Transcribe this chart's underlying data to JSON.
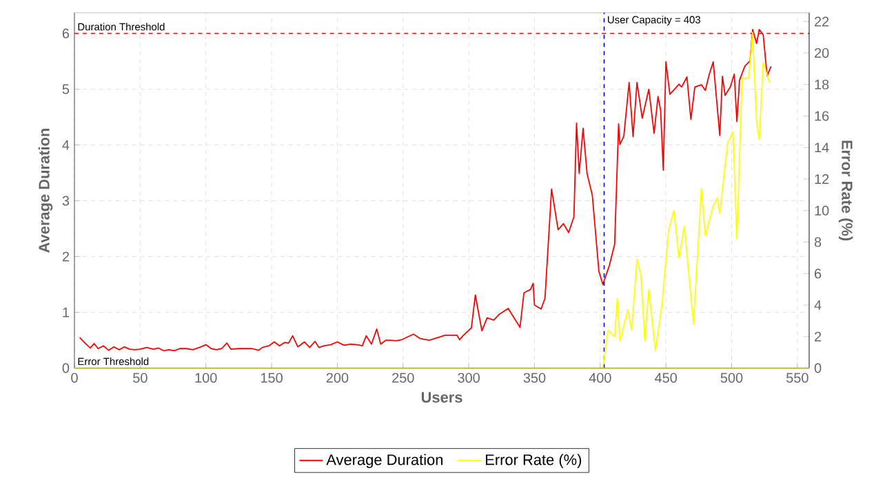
{
  "chart_data": {
    "type": "line",
    "xlabel": "Users",
    "ylabel": "Average Duration",
    "y2label": "Error Rate (%)",
    "xlim": [
      0,
      559
    ],
    "xticks": [
      0,
      50,
      100,
      150,
      200,
      250,
      300,
      350,
      400,
      450,
      500,
      550
    ],
    "ylim": [
      0,
      6.37
    ],
    "yticks": [
      0,
      1,
      2,
      3,
      4,
      5,
      6
    ],
    "y2lim": [
      0,
      22.55
    ],
    "y2ticks": [
      0,
      2,
      4,
      6,
      8,
      10,
      12,
      14,
      16,
      18,
      20,
      22
    ],
    "grid": true,
    "legend": "bottom",
    "marker": "none",
    "line_style": "solid",
    "ref_lines": [
      {
        "axis": "y",
        "value": 6,
        "label": "Duration Threshold",
        "color": "#ff0000",
        "line_style": "dashed"
      },
      {
        "axis": "y2",
        "value": 0,
        "label": "Error Threshold",
        "color": "#b8b838",
        "line_style": "solid"
      },
      {
        "axis": "x",
        "value": 403,
        "label": "User Capacity = 403",
        "color": "#0000cc",
        "line_style": "dashed"
      }
    ],
    "series": [
      {
        "name": "Average Duration",
        "color": "#ff0000",
        "x": [
          4,
          8,
          12,
          15,
          18,
          22,
          26,
          30,
          34,
          38,
          42,
          46,
          50,
          55,
          60,
          64,
          68,
          72,
          76,
          80,
          85,
          90,
          95,
          100,
          104,
          108,
          112,
          116,
          119,
          125,
          130,
          135,
          140,
          143,
          148,
          152,
          156,
          160,
          163,
          166,
          170,
          175,
          179,
          183,
          186,
          190,
          195,
          200,
          205,
          210,
          215,
          219,
          222,
          226,
          230,
          233,
          237,
          240,
          245,
          249,
          258,
          263,
          270,
          282,
          291,
          293,
          296,
          302,
          305,
          310,
          314,
          319,
          323,
          330,
          339,
          342,
          347,
          349,
          350,
          355,
          358,
          363,
          368,
          372,
          376,
          380,
          382,
          384,
          387,
          390,
          394,
          399,
          402,
          407,
          411,
          414,
          415,
          418,
          422,
          425,
          428,
          432,
          437,
          441,
          444,
          446,
          448,
          450,
          453,
          460,
          462,
          466,
          469,
          472,
          477,
          480,
          483,
          486,
          491,
          493,
          495,
          499,
          502,
          504,
          506,
          510,
          514,
          516,
          519,
          521,
          524,
          527,
          530
        ],
        "values": [
          0.55,
          0.45,
          0.36,
          0.44,
          0.35,
          0.4,
          0.32,
          0.38,
          0.33,
          0.38,
          0.34,
          0.33,
          0.34,
          0.37,
          0.34,
          0.36,
          0.31,
          0.33,
          0.31,
          0.35,
          0.35,
          0.33,
          0.37,
          0.42,
          0.35,
          0.33,
          0.35,
          0.45,
          0.34,
          0.35,
          0.35,
          0.35,
          0.32,
          0.37,
          0.4,
          0.47,
          0.4,
          0.46,
          0.45,
          0.58,
          0.38,
          0.47,
          0.37,
          0.48,
          0.37,
          0.4,
          0.42,
          0.47,
          0.41,
          0.43,
          0.42,
          0.4,
          0.58,
          0.43,
          0.7,
          0.43,
          0.5,
          0.5,
          0.49,
          0.51,
          0.61,
          0.53,
          0.5,
          0.59,
          0.59,
          0.51,
          0.59,
          0.72,
          1.31,
          0.67,
          0.9,
          0.86,
          0.96,
          1.07,
          0.73,
          1.35,
          1.41,
          1.52,
          1.13,
          1.06,
          1.25,
          3.21,
          2.48,
          2.59,
          2.43,
          2.71,
          4.39,
          3.49,
          4.3,
          3.49,
          3.1,
          1.74,
          1.5,
          1.84,
          2.22,
          4.38,
          4.01,
          4.16,
          5.12,
          4.15,
          5.12,
          4.48,
          5.0,
          4.21,
          4.87,
          4.62,
          3.55,
          5.49,
          4.91,
          5.09,
          5.04,
          5.22,
          4.46,
          5.04,
          5.08,
          4.98,
          5.27,
          5.49,
          4.17,
          5.23,
          4.89,
          5.04,
          5.27,
          4.42,
          5.16,
          5.41,
          5.51,
          6.07,
          5.82,
          6.07,
          5.98,
          5.24,
          5.41
        ]
      },
      {
        "name": "Error Rate (%)",
        "color": "#ffff00",
        "axis": "y2",
        "x": [
          402,
          406,
          411,
          413,
          415,
          421,
          424,
          428,
          431,
          434,
          437,
          442,
          447,
          452,
          456,
          460,
          464,
          471,
          477,
          480,
          486,
          489,
          491,
          497,
          501,
          504,
          508,
          513,
          516,
          519,
          521,
          524,
          529
        ],
        "values": [
          0,
          2.4,
          2,
          4.4,
          1.7,
          3.7,
          2.4,
          6.9,
          5.9,
          1.7,
          5,
          1.1,
          4,
          8.7,
          10,
          7,
          9,
          2.8,
          11.4,
          8.4,
          10.3,
          10.8,
          9.8,
          14.3,
          15,
          8.2,
          18.4,
          18.4,
          21.3,
          15.6,
          14.5,
          19.4,
          18.1
        ]
      }
    ]
  }
}
